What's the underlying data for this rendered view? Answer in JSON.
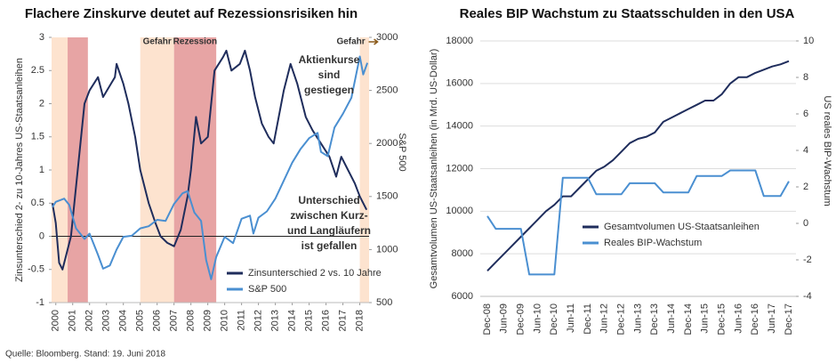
{
  "chart_data": [
    {
      "type": "line",
      "title": "Flachere Zinskurve deutet auf Rezessionsrisiken hin",
      "ylabel": "Zinsunterschied 2- zu 10-Jahres US-Staatsanleihen",
      "y2label": "S&P 500",
      "xlim": [
        1999.75,
        2018.55
      ],
      "xticks": [
        2000,
        2001,
        2002,
        2003,
        2004,
        2005,
        2006,
        2007,
        2008,
        2009,
        2010,
        2011,
        2012,
        2013,
        2014,
        2015,
        2016,
        2017,
        2018
      ],
      "ylim": [
        -1,
        3
      ],
      "yticks": [
        -1,
        -0.5,
        0,
        0.5,
        1,
        1.5,
        2,
        2.5,
        3
      ],
      "y2lim": [
        500,
        3000
      ],
      "y2ticks": [
        500,
        1000,
        1500,
        2000,
        2500,
        3000
      ],
      "bands": [
        {
          "x0": 1999.75,
          "x1": 2000.7,
          "color": "#fde3cf"
        },
        {
          "x0": 2000.7,
          "x1": 2001.9,
          "color": "#e7a4a4"
        },
        {
          "x0": 2005.0,
          "x1": 2007.0,
          "color": "#fde3cf",
          "label": "Gefahr",
          "label_color": "#c0712b"
        },
        {
          "x0": 2007.0,
          "x1": 2009.5,
          "color": "#e7a4a4",
          "label": "Rezession",
          "label_color": "#b52a2a"
        },
        {
          "x0": 2018.0,
          "x1": 2018.55,
          "color": "#fde3cf",
          "label": "Gefahr",
          "label_color": "#8a5a1a"
        }
      ],
      "annotations": [
        {
          "lines": [
            "Aktienkurse",
            "sind",
            "gestiegen"
          ],
          "color": "#2e75b6"
        },
        {
          "lines": [
            "Unterschied",
            "zwischen Kurz-",
            "und Langläufern",
            "ist gefallen"
          ],
          "color": "#1f2d5c"
        }
      ],
      "series": [
        {
          "name": "Zinsunterschied 2 vs. 10 Jahre",
          "color": "#1f2d5c",
          "x": [
            1999.8,
            2000.0,
            2000.2,
            2000.4,
            2000.6,
            2000.9,
            2001.3,
            2001.7,
            2002.0,
            2002.5,
            2002.8,
            2003.5,
            2003.6,
            2004.0,
            2004.3,
            2004.7,
            2005.0,
            2005.5,
            2005.9,
            2006.2,
            2006.6,
            2007.0,
            2007.4,
            2007.8,
            2008.0,
            2008.3,
            2008.6,
            2009.0,
            2009.4,
            2009.9,
            2010.1,
            2010.4,
            2010.9,
            2011.2,
            2011.5,
            2011.8,
            2012.2,
            2012.6,
            2012.9,
            2013.5,
            2013.9,
            2014.3,
            2014.8,
            2015.2,
            2015.7,
            2016.2,
            2016.6,
            2016.9,
            2017.3,
            2017.7,
            2018.0,
            2018.4
          ],
          "values": [
            0.5,
            0.2,
            -0.4,
            -0.5,
            -0.3,
            0,
            1.0,
            2.0,
            2.2,
            2.4,
            2.1,
            2.4,
            2.6,
            2.3,
            2.0,
            1.5,
            1.0,
            0.5,
            0.2,
            0,
            -0.1,
            -0.15,
            0.1,
            0.6,
            1.0,
            1.8,
            1.4,
            1.5,
            2.5,
            2.7,
            2.8,
            2.5,
            2.6,
            2.8,
            2.5,
            2.1,
            1.7,
            1.5,
            1.4,
            2.2,
            2.6,
            2.3,
            1.8,
            1.6,
            1.4,
            1.2,
            0.9,
            1.2,
            1.0,
            0.8,
            0.6,
            0.4
          ]
        },
        {
          "name": "S&P 500",
          "color": "#4a8fd1",
          "axis": "y2",
          "x": [
            1999.8,
            2000.0,
            2000.5,
            2000.8,
            2001.2,
            2001.7,
            2002.0,
            2002.5,
            2002.8,
            2003.2,
            2003.6,
            2004.0,
            2004.5,
            2005.0,
            2005.5,
            2006.0,
            2006.5,
            2007.0,
            2007.5,
            2007.8,
            2008.2,
            2008.6,
            2008.9,
            2009.2,
            2009.5,
            2010.0,
            2010.5,
            2011.0,
            2011.5,
            2011.7,
            2012.0,
            2012.5,
            2013.0,
            2013.5,
            2014.0,
            2014.5,
            2015.0,
            2015.5,
            2015.7,
            2016.1,
            2016.5,
            2017.0,
            2017.5,
            2018.0,
            2018.2,
            2018.45
          ],
          "values": [
            1400,
            1450,
            1480,
            1420,
            1200,
            1100,
            1150,
            950,
            820,
            850,
            1000,
            1120,
            1130,
            1200,
            1220,
            1280,
            1270,
            1430,
            1530,
            1550,
            1350,
            1270,
            900,
            720,
            930,
            1120,
            1060,
            1290,
            1320,
            1150,
            1300,
            1360,
            1480,
            1650,
            1820,
            1950,
            2050,
            2100,
            1920,
            1880,
            2150,
            2280,
            2430,
            2820,
            2650,
            2760
          ]
        }
      ]
    },
    {
      "type": "line",
      "title": "Reales BIP Wachstum zu Staatsschulden in den USA",
      "ylabel": "Gesamtvolumen US-Staatsanleihen (in Mrd. US-Dollar)",
      "y2label": "US reales BIP-Wachstum",
      "categories": [
        "Dec-08",
        null,
        "Jun-09",
        null,
        "Dec-09",
        null,
        "Jun-10",
        null,
        "Dec-10",
        null,
        "Jun-11",
        null,
        "Dec-11",
        null,
        "Jun-12",
        null,
        "Dec-12",
        null,
        "Jun-13",
        null,
        "Dec-13",
        null,
        "Jun-14",
        null,
        "Dec-14",
        null,
        "Jun-15",
        null,
        "Dec-15",
        null,
        "Jun-16",
        null,
        "Dec-16",
        null,
        "Jun-17",
        null,
        "Dec-17"
      ],
      "ylim": [
        6000,
        18000
      ],
      "yticks": [
        6000,
        8000,
        10000,
        12000,
        14000,
        16000,
        18000
      ],
      "y2lim": [
        -4,
        10
      ],
      "y2ticks": [
        -4,
        -2,
        0,
        2,
        4,
        6,
        8,
        10
      ],
      "grid": true,
      "series": [
        {
          "name": "Gesamtvolumen US-Staatsanleihen",
          "color": "#1f2d5c",
          "values": [
            7200,
            7600,
            8000,
            8400,
            8800,
            9200,
            9600,
            10000,
            10300,
            10700,
            10700,
            11100,
            11500,
            11900,
            12100,
            12400,
            12800,
            13200,
            13400,
            13500,
            13700,
            14200,
            14400,
            14600,
            14800,
            15000,
            15200,
            15200,
            15500,
            16000,
            16300,
            16300,
            16500,
            16650,
            16800,
            16900,
            17050
          ]
        },
        {
          "name": "Reales BIP-Wachstum",
          "color": "#4a8fd1",
          "axis": "y2",
          "values": [
            0.4,
            -0.3,
            -0.3,
            -0.3,
            -0.3,
            -2.8,
            -2.8,
            -2.8,
            -2.8,
            2.5,
            2.5,
            2.5,
            2.5,
            1.6,
            1.6,
            1.6,
            1.6,
            2.2,
            2.2,
            2.2,
            2.2,
            1.7,
            1.7,
            1.7,
            1.7,
            2.6,
            2.6,
            2.6,
            2.6,
            2.9,
            2.9,
            2.9,
            2.9,
            1.5,
            1.5,
            1.5,
            2.3
          ]
        }
      ]
    }
  ],
  "source": "Quelle: Bloomberg. Stand: 19. Juni 2018"
}
